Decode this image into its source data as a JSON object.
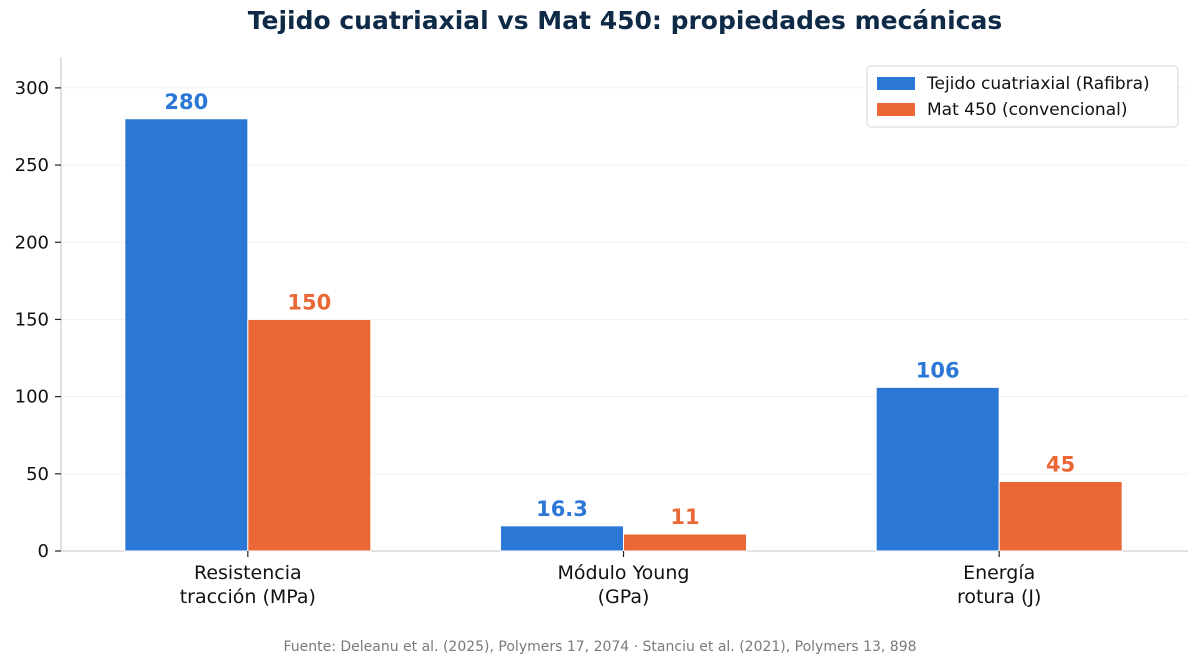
{
  "chart_data": {
    "type": "bar",
    "title": "Tejido cuatriaxial vs Mat 450: propiedades mecánicas",
    "xlabel": "",
    "ylabel": "",
    "categories": [
      [
        "Resistencia",
        "tracción (MPa)"
      ],
      [
        "Módulo Young",
        "(GPa)"
      ],
      [
        "Energía",
        "rotura (J)"
      ]
    ],
    "series": [
      {
        "name": "Tejido cuatriaxial (Rafibra)",
        "values": [
          280,
          16.3,
          106
        ],
        "labels": [
          "280",
          "16.3",
          "106"
        ],
        "color": "#2a77d5"
      },
      {
        "name": "Mat 450 (convencional)",
        "values": [
          150,
          11,
          45
        ],
        "labels": [
          "150",
          "11",
          "45"
        ],
        "color": "#e96835"
      }
    ],
    "ylim": [
      0,
      320
    ],
    "yticks": [
      "0",
      "50",
      "100",
      "150",
      "200",
      "250",
      "300"
    ],
    "grid": true,
    "legend_position": "top-right"
  },
  "source": "Fuente: Deleanu et al. (2025), Polymers 17, 2074 · Stanciu et al. (2021), Polymers 13, 898"
}
